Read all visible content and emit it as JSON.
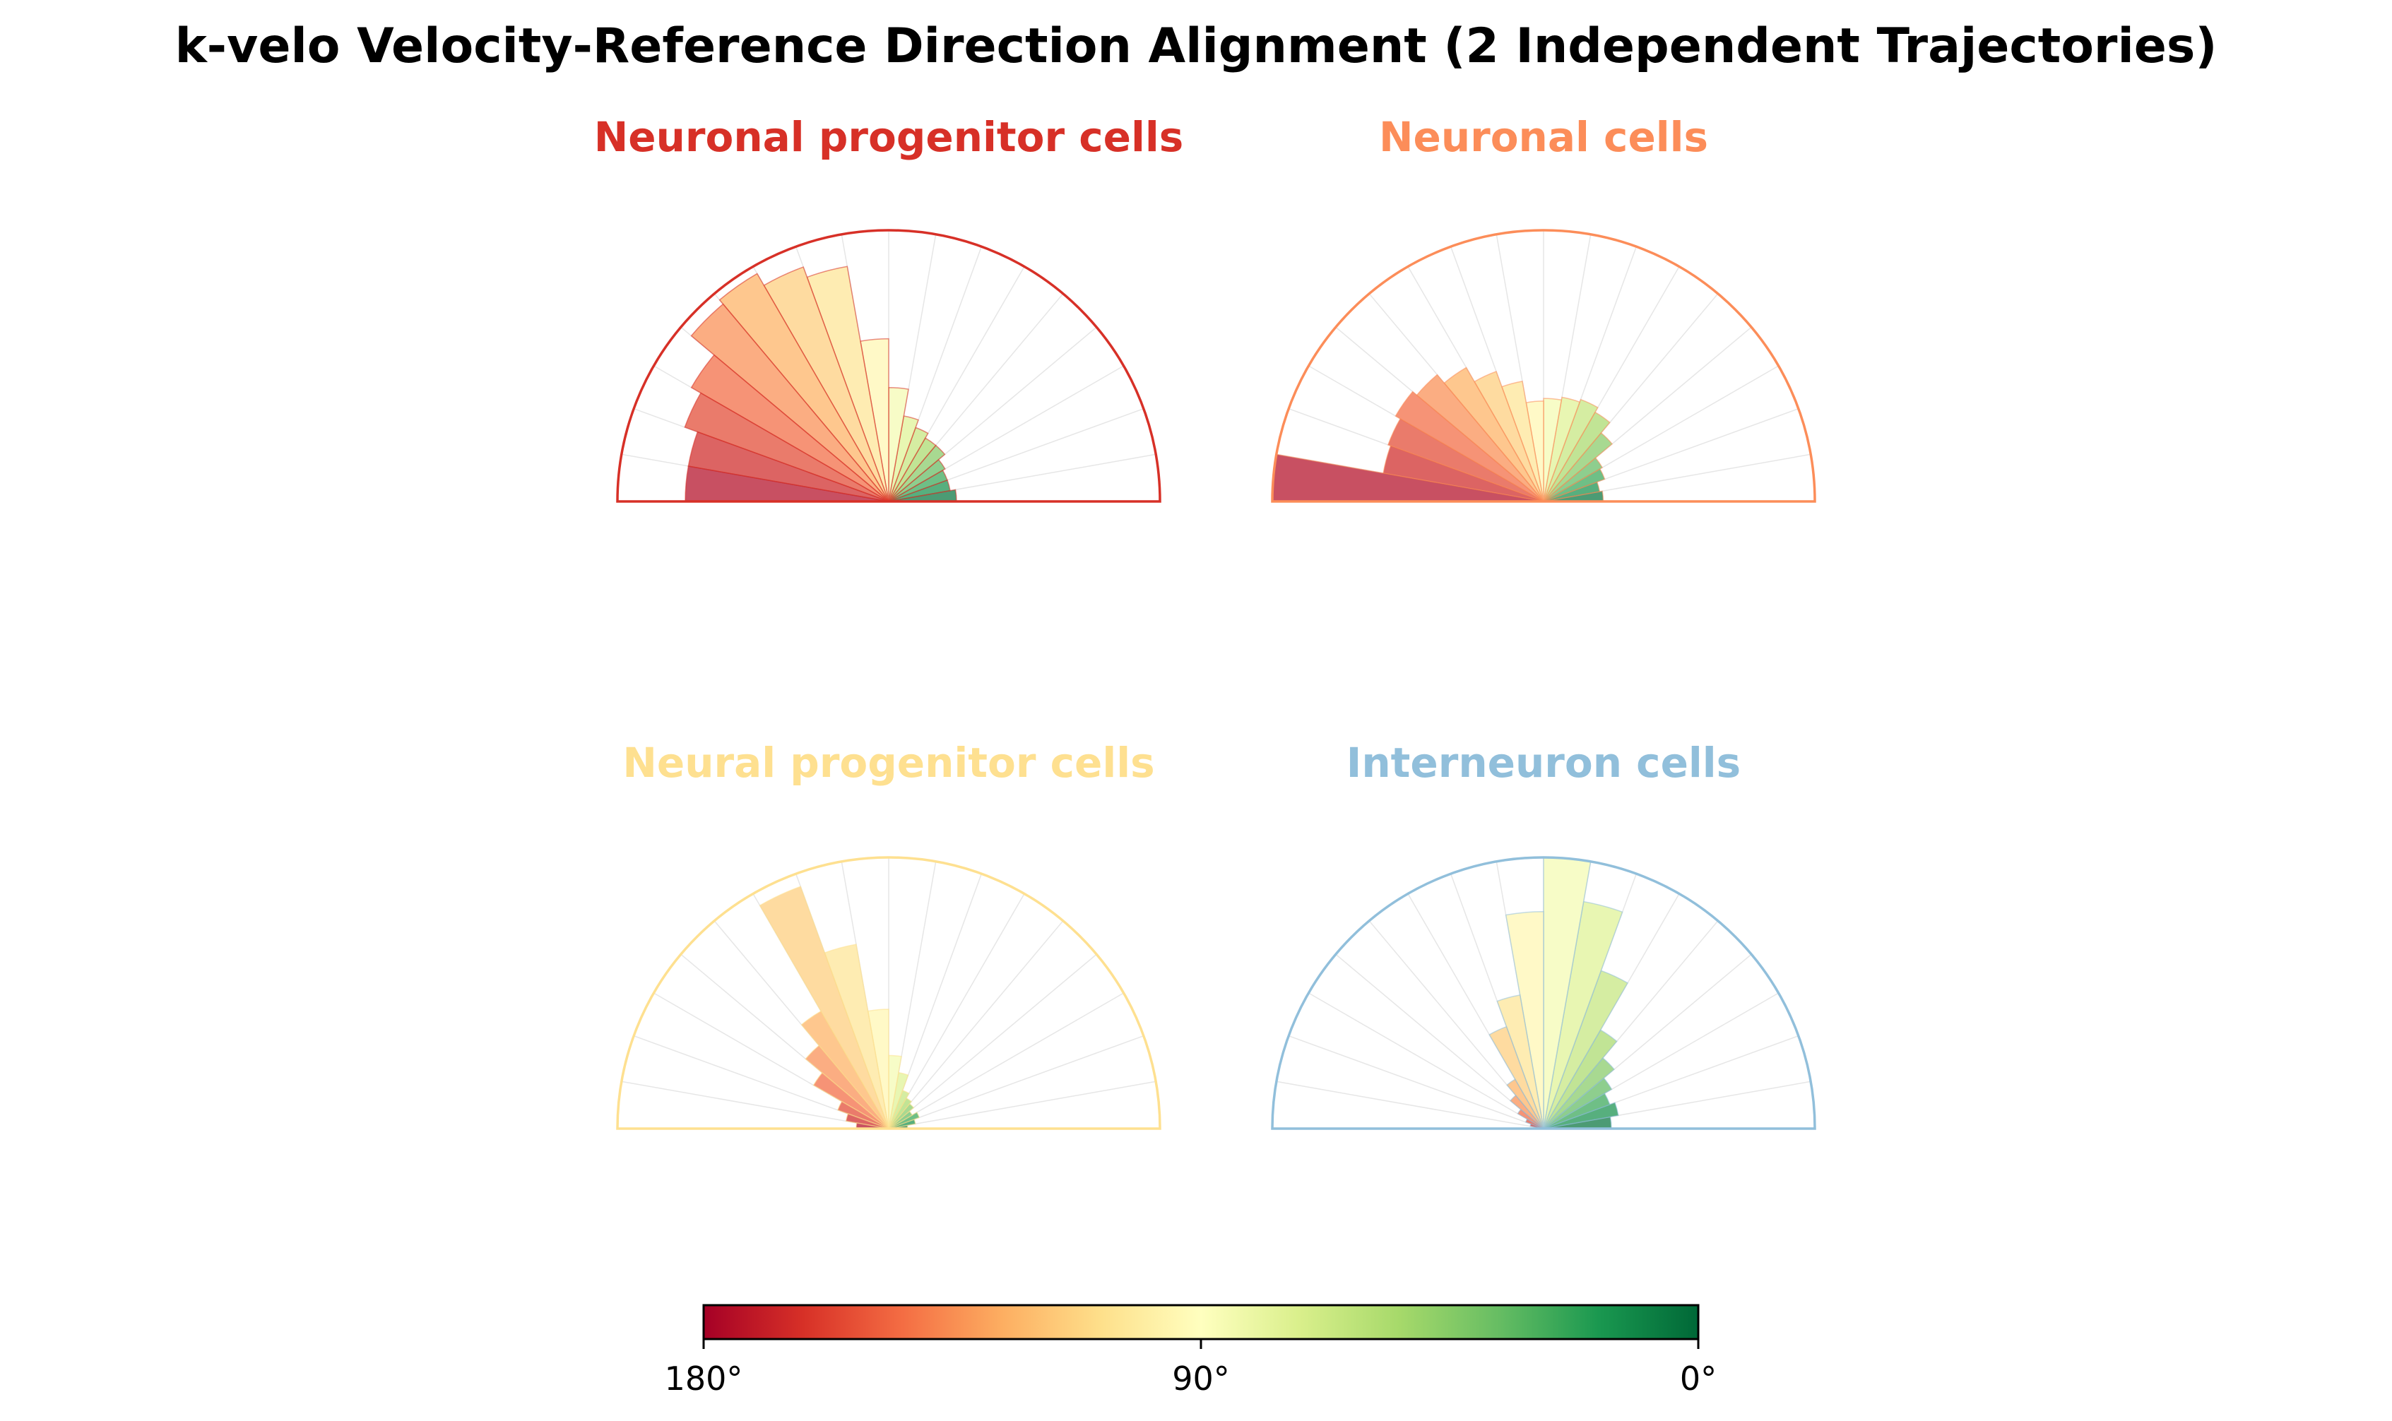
{
  "figure_title": "k-velo Velocity-Reference Direction Alignment (2 Independent Trajectories)",
  "chart_data": [
    {
      "type": "bar",
      "subtype": "polar-half-rose",
      "title": "Neuronal progenitor cells",
      "title_color": "#d73027",
      "angle_unit": "degrees (0 = right, 180 = left)",
      "bin_width_deg": 10,
      "bin_centers_deg": [
        5,
        15,
        25,
        35,
        45,
        55,
        65,
        75,
        85,
        95,
        105,
        115,
        125,
        135,
        145,
        155,
        165,
        175
      ],
      "values": [
        0.25,
        0.23,
        0.23,
        0.24,
        0.27,
        0.27,
        0.29,
        0.32,
        0.42,
        0.6,
        0.88,
        0.92,
        0.97,
        0.95,
        0.84,
        0.8,
        0.75,
        0.75
      ],
      "rmax": 1.0
    },
    {
      "type": "bar",
      "subtype": "polar-half-rose",
      "title": "Neuronal cells",
      "title_color": "#fc8d59",
      "angle_unit": "degrees (0 = right, 180 = left)",
      "bin_width_deg": 10,
      "bin_centers_deg": [
        5,
        15,
        25,
        35,
        45,
        55,
        65,
        75,
        85,
        95,
        105,
        115,
        125,
        135,
        145,
        155,
        165,
        175
      ],
      "values": [
        0.22,
        0.21,
        0.24,
        0.25,
        0.33,
        0.38,
        0.4,
        0.39,
        0.38,
        0.37,
        0.45,
        0.51,
        0.57,
        0.61,
        0.63,
        0.61,
        0.6,
        1.0
      ],
      "rmax": 1.0
    },
    {
      "type": "bar",
      "subtype": "polar-half-rose",
      "title": "Neural progenitor cells",
      "title_color": "#fee090",
      "angle_unit": "degrees (0 = right, 180 = left)",
      "bin_width_deg": 10,
      "bin_centers_deg": [
        5,
        15,
        25,
        35,
        45,
        55,
        65,
        75,
        85,
        95,
        105,
        115,
        125,
        135,
        145,
        155,
        165,
        175
      ],
      "values": [
        0.07,
        0.1,
        0.12,
        0.1,
        0.12,
        0.13,
        0.15,
        0.21,
        0.27,
        0.44,
        0.69,
        0.95,
        0.5,
        0.4,
        0.32,
        0.2,
        0.16,
        0.12
      ],
      "rmax": 1.0
    },
    {
      "type": "bar",
      "subtype": "polar-half-rose",
      "title": "Interneuron cells",
      "title_color": "#91bfdb",
      "angle_unit": "degrees (0 = right, 180 = left)",
      "bin_width_deg": 10,
      "bin_centers_deg": [
        5,
        15,
        25,
        35,
        45,
        55,
        65,
        75,
        85,
        95,
        105,
        115,
        125,
        135,
        145,
        155,
        165,
        175
      ],
      "values": [
        0.25,
        0.28,
        0.26,
        0.29,
        0.34,
        0.42,
        0.62,
        0.85,
        1.0,
        0.8,
        0.5,
        0.4,
        0.21,
        0.16,
        0.11,
        0.07,
        0.05,
        0.03
      ],
      "rmax": 1.0
    }
  ],
  "colorbar": {
    "colormap": "RdYlGn",
    "range_deg": [
      180,
      0
    ],
    "ticks": [
      "180°",
      "90°",
      "0°"
    ]
  }
}
